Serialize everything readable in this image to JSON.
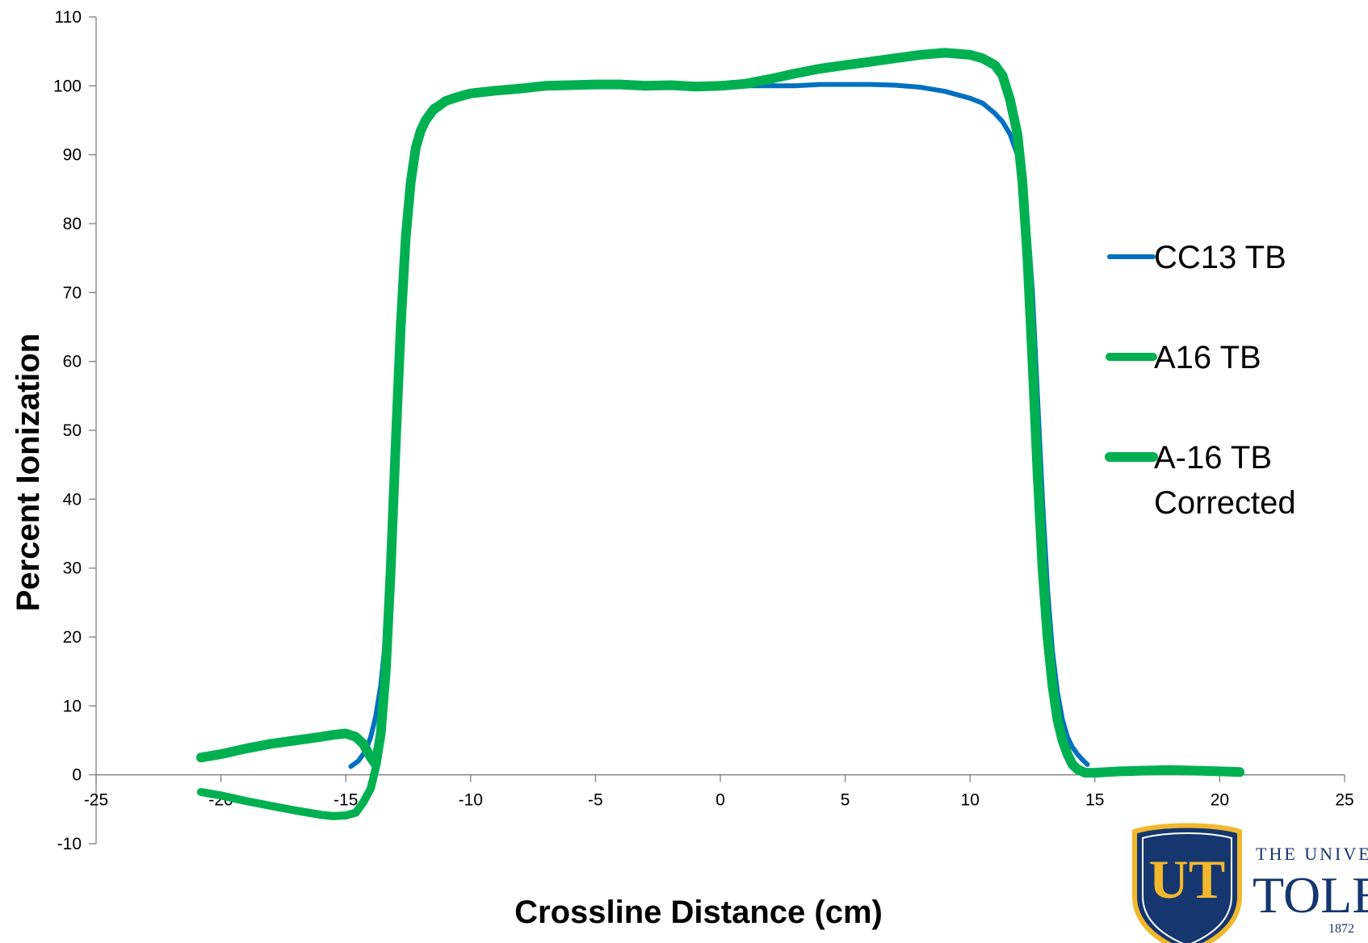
{
  "chart_data": {
    "type": "line",
    "title": "",
    "xlabel": "Crossline Distance (cm)",
    "ylabel": "Percent Ionization",
    "xlim": [
      -25,
      25
    ],
    "ylim": [
      -10,
      110
    ],
    "xticks": [
      -25,
      -20,
      -15,
      -10,
      -5,
      0,
      5,
      10,
      15,
      20,
      25
    ],
    "yticks": [
      -10,
      0,
      10,
      20,
      30,
      40,
      50,
      60,
      70,
      80,
      90,
      100,
      110
    ],
    "grid": false,
    "legend_position": "right",
    "series": [
      {
        "name": "CC13 TB",
        "color": "#0070c0",
        "x": [
          -14.8,
          -14.5,
          -14.2,
          -14.0,
          -13.8,
          -13.6,
          -13.4,
          -13.2,
          -13.0,
          -12.8,
          -12.6,
          -12.4,
          -12.2,
          -12.0,
          -11.8,
          -11.5,
          -11.0,
          -10.5,
          -10.0,
          -9.0,
          -8.0,
          -7.0,
          -6.0,
          -5.0,
          -4.0,
          -3.0,
          -2.0,
          -1.0,
          0.0,
          1.0,
          2.0,
          3.0,
          4.0,
          5.0,
          6.0,
          7.0,
          8.0,
          9.0,
          10.0,
          10.5,
          11.0,
          11.3,
          11.6,
          11.9,
          12.1,
          12.3,
          12.5,
          12.7,
          12.9,
          13.1,
          13.3,
          13.5,
          13.7,
          13.9,
          14.1,
          14.3,
          14.5,
          14.7
        ],
        "y": [
          1.2,
          2.0,
          3.5,
          5.5,
          8.5,
          13,
          20,
          30,
          45,
          62,
          77,
          86,
          91,
          94,
          95.5,
          97,
          98,
          98.5,
          99,
          99.3,
          99.6,
          99.8,
          99.9,
          100,
          100,
          100,
          100,
          100,
          100,
          100,
          100,
          100,
          100.2,
          100.2,
          100.2,
          100.1,
          99.8,
          99.2,
          98.2,
          97.5,
          96.0,
          94.8,
          93.0,
          90.0,
          86.0,
          80.0,
          70.0,
          55.0,
          40.0,
          27.0,
          18.0,
          12.0,
          8.0,
          5.5,
          4.0,
          3.0,
          2.2,
          1.5
        ]
      },
      {
        "name": "A16 TB",
        "color": "#00b050",
        "x": [
          -20.8,
          -20.0,
          -19.0,
          -18.0,
          -17.0,
          -16.0,
          -15.5,
          -15.0,
          -14.6,
          -14.3,
          -14.0,
          -13.8,
          -13.6,
          -13.4,
          -13.2,
          -13.0,
          -12.8,
          -12.6,
          -12.4,
          -12.2,
          -12.0,
          -11.8,
          -11.5,
          -11.0,
          -10.5,
          -10.0,
          -9.0,
          -8.0,
          -7.0,
          -6.0,
          -5.0,
          -4.0,
          -3.0,
          -2.0,
          -1.0,
          0.0,
          1.0,
          2.0,
          3.0,
          4.0,
          5.0,
          6.0,
          7.0,
          8.0,
          9.0,
          10.0,
          10.5,
          11.0,
          11.3,
          11.6,
          11.9,
          12.1,
          12.3,
          12.5,
          12.7,
          12.9,
          13.1,
          13.3,
          13.5,
          13.7,
          13.9,
          14.1,
          14.3,
          14.6,
          15.0,
          15.5,
          16.0,
          17.0,
          18.0,
          19.0,
          20.0,
          20.8
        ],
        "y": [
          -2.5,
          -3.0,
          -3.8,
          -4.5,
          -5.2,
          -5.8,
          -6.0,
          -5.9,
          -5.5,
          -4.0,
          -2.0,
          1.0,
          6.0,
          15.0,
          30.0,
          48.0,
          65.0,
          78.0,
          86.0,
          91.0,
          93.5,
          95.0,
          96.5,
          97.8,
          98.4,
          98.9,
          99.3,
          99.6,
          100.0,
          100.1,
          100.2,
          100.2,
          100.0,
          100.1,
          99.9,
          100.0,
          100.3,
          101.0,
          101.8,
          102.5,
          103.0,
          103.5,
          104.0,
          104.5,
          104.8,
          104.5,
          104.0,
          103.0,
          101.5,
          98.0,
          93.0,
          86.0,
          75.0,
          60.0,
          44.0,
          30.0,
          20.0,
          13.0,
          8.0,
          5.0,
          3.0,
          1.5,
          0.8,
          0.3,
          0.3,
          0.4,
          0.5,
          0.6,
          0.7,
          0.6,
          0.5,
          0.4
        ]
      },
      {
        "name": "A-16 TB Corrected",
        "color": "#00b050",
        "x": [
          -20.8,
          -20.0,
          -19.0,
          -18.0,
          -17.0,
          -16.0,
          -15.5,
          -15.0,
          -14.6,
          -14.3,
          -14.0,
          -13.8,
          -13.6,
          -13.4,
          -13.2,
          -13.0,
          -12.8,
          -12.6,
          -12.4,
          -12.2,
          -12.0,
          -11.8,
          -11.5,
          -11.0,
          -10.5,
          -10.0,
          -9.0,
          -8.0,
          -7.0,
          -6.0,
          -5.0,
          -4.0,
          -3.0,
          -2.0,
          -1.0,
          0.0,
          1.0,
          2.0,
          3.0,
          4.0,
          5.0,
          6.0,
          7.0,
          8.0,
          9.0,
          10.0,
          10.5,
          11.0,
          11.3,
          11.6,
          11.9,
          12.1,
          12.3,
          12.5,
          12.7,
          12.9,
          13.1,
          13.3,
          13.5,
          13.7,
          13.9,
          14.1,
          14.3,
          14.6,
          15.0,
          15.5,
          16.0,
          17.0,
          18.0,
          19.0,
          20.0,
          20.8
        ],
        "y": [
          2.5,
          3.0,
          3.8,
          4.5,
          5.0,
          5.5,
          5.8,
          6.0,
          5.5,
          4.5,
          2.5,
          1.5,
          6.0,
          15.0,
          30.0,
          48.0,
          65.0,
          78.0,
          86.0,
          91.0,
          93.5,
          95.0,
          96.5,
          97.8,
          98.4,
          98.9,
          99.3,
          99.6,
          100.0,
          100.1,
          100.2,
          100.2,
          100.0,
          100.1,
          99.9,
          100.0,
          100.3,
          101.0,
          101.8,
          102.5,
          103.0,
          103.5,
          104.0,
          104.5,
          104.8,
          104.5,
          104.0,
          103.0,
          101.5,
          98.0,
          93.0,
          86.0,
          75.0,
          60.0,
          44.0,
          30.0,
          20.0,
          13.0,
          8.0,
          5.0,
          3.0,
          1.5,
          0.8,
          0.3,
          0.3,
          0.4,
          0.5,
          0.6,
          0.7,
          0.6,
          0.5,
          0.4
        ]
      }
    ]
  },
  "legend": {
    "items": [
      {
        "label_lines": [
          "CC13 TB"
        ]
      },
      {
        "label_lines": [
          "A16 TB"
        ]
      },
      {
        "label_lines": [
          "A-16 TB",
          "Corrected"
        ]
      }
    ]
  },
  "logo": {
    "monogram": "UT",
    "line1": "THE UNIVE",
    "line2": "TOLE",
    "year": "1872",
    "colors": {
      "shield_blue": "#15366f",
      "gold": "#f1b82d"
    }
  }
}
